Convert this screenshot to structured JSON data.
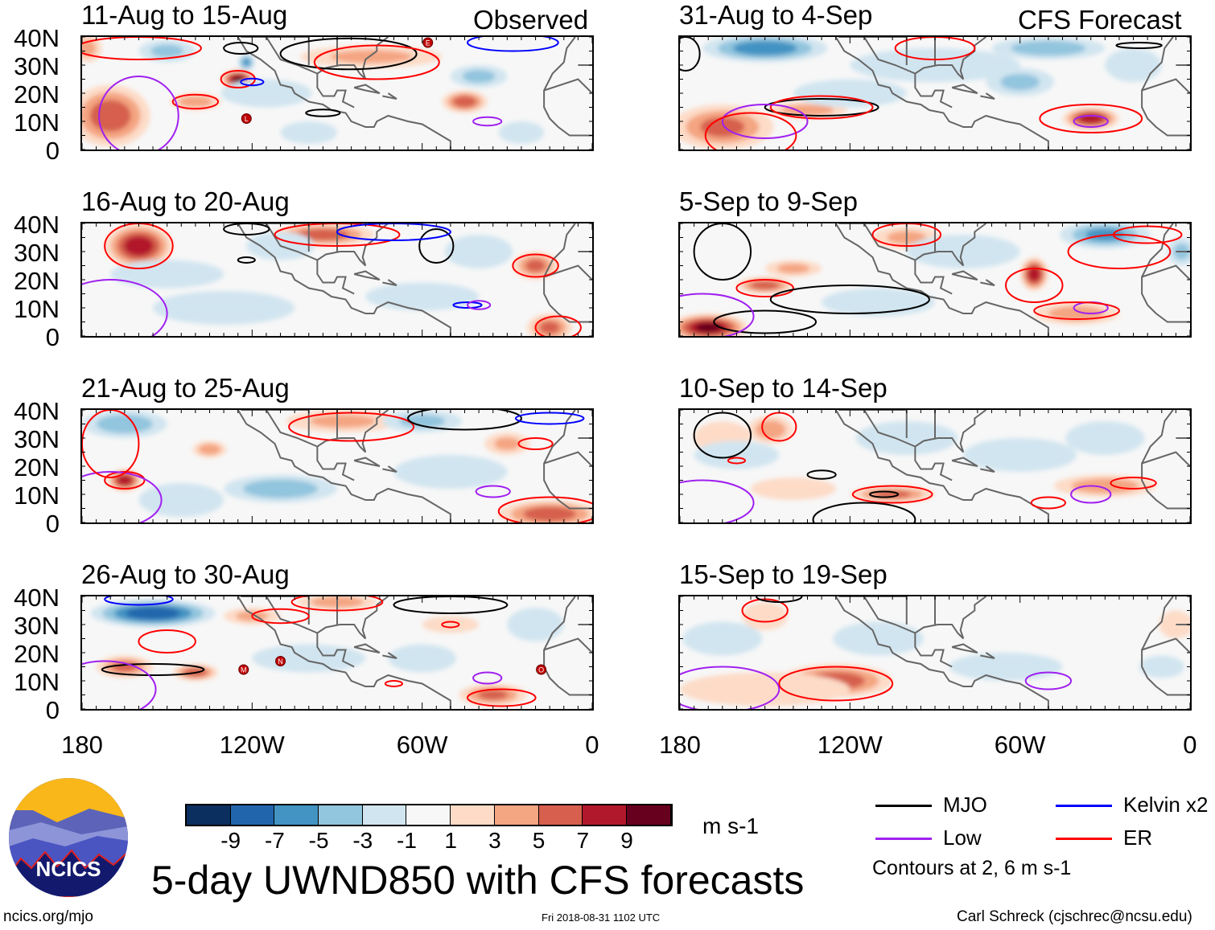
{
  "header": {
    "observed_label": "Observed",
    "forecast_label": "CFS Forecast"
  },
  "axes": {
    "lat_labels": [
      "40N",
      "30N",
      "20N",
      "10N",
      "0"
    ],
    "lon_labels": [
      "180",
      "120W",
      "60W",
      "0"
    ]
  },
  "panels": [
    {
      "title": "11-Aug to 15-Aug",
      "side": "observed",
      "blobs": [
        [
          -170,
          12,
          7,
          14,
          11
        ],
        [
          -125,
          25,
          10,
          6,
          3.5
        ],
        [
          -140,
          17,
          5,
          9,
          3
        ],
        [
          -45,
          17,
          7,
          8,
          4
        ],
        [
          -78,
          33,
          4,
          25,
          4
        ],
        [
          -178,
          36,
          4,
          5,
          5
        ],
        [
          -122,
          31,
          -6,
          3,
          3
        ],
        [
          -115,
          20,
          -3,
          16,
          5
        ],
        [
          -40,
          26,
          -4,
          10,
          4
        ],
        [
          -150,
          35,
          -4,
          10,
          4
        ],
        [
          -100,
          6,
          -3,
          10,
          4
        ],
        [
          -25,
          6,
          -3,
          8,
          4
        ]
      ],
      "contours": [
        [
          "er",
          -140,
          17,
          8,
          2.5
        ],
        [
          "er",
          -125,
          25,
          6,
          3
        ],
        [
          "kelvin",
          -120,
          24,
          4,
          1.2
        ],
        [
          "mjo",
          -95,
          13,
          6,
          1.2
        ],
        [
          "mjo",
          -124,
          36,
          6,
          2
        ],
        [
          "mjo",
          -86,
          34,
          24,
          5.5
        ],
        [
          "er",
          -76,
          31,
          22,
          6
        ],
        [
          "low",
          -37,
          10,
          5,
          1.5
        ],
        [
          "low",
          -160,
          12,
          14,
          14
        ],
        [
          "kelvin",
          -28,
          38,
          16,
          3
        ],
        [
          "er",
          -160,
          36,
          22,
          4
        ]
      ],
      "storms": [
        [
          "L",
          -122,
          11
        ],
        [
          "E",
          -58,
          38
        ]
      ]
    },
    {
      "title": "16-Aug to 20-Aug",
      "side": "observed",
      "blobs": [
        [
          -160,
          32,
          9,
          12,
          8
        ],
        [
          -95,
          36,
          7,
          18,
          4
        ],
        [
          -20,
          25,
          6,
          8,
          5
        ],
        [
          -15,
          3,
          6,
          8,
          5
        ],
        [
          -60,
          14,
          -3,
          20,
          5
        ],
        [
          -130,
          10,
          -3,
          25,
          6
        ],
        [
          -150,
          22,
          -2,
          20,
          5
        ],
        [
          -110,
          32,
          -3,
          12,
          5
        ],
        [
          -40,
          30,
          -3,
          12,
          6
        ]
      ],
      "contours": [
        [
          "er",
          -160,
          32,
          12,
          8
        ],
        [
          "er",
          -90,
          36,
          22,
          4
        ],
        [
          "mjo",
          -55,
          32,
          6,
          6
        ],
        [
          "mjo",
          -122,
          38,
          8,
          2
        ],
        [
          "mjo",
          -122,
          27,
          3,
          1
        ],
        [
          "kelvin",
          -70,
          37,
          20,
          3
        ],
        [
          "kelvin",
          -44,
          11,
          5,
          1
        ],
        [
          "low",
          -40,
          11,
          4,
          1.5
        ],
        [
          "low",
          -170,
          8,
          20,
          12
        ],
        [
          "er",
          -20,
          25,
          8,
          4
        ],
        [
          "er",
          -12,
          3,
          8,
          4
        ]
      ],
      "storms": []
    },
    {
      "title": "21-Aug to 25-Aug",
      "side": "observed",
      "blobs": [
        [
          -165,
          15,
          9,
          6,
          4
        ],
        [
          -135,
          26,
          5,
          6,
          3
        ],
        [
          -88,
          36,
          4,
          20,
          4
        ],
        [
          -30,
          28,
          4,
          8,
          4
        ],
        [
          -15,
          3,
          7,
          18,
          5
        ],
        [
          -165,
          35,
          -5,
          15,
          5
        ],
        [
          -110,
          12,
          -5,
          20,
          5
        ],
        [
          -60,
          36,
          -4,
          14,
          4
        ],
        [
          -50,
          18,
          -3,
          20,
          6
        ],
        [
          -145,
          8,
          -3,
          15,
          6
        ]
      ],
      "contours": [
        [
          "er",
          -165,
          15,
          7,
          3
        ],
        [
          "er",
          -85,
          34,
          22,
          5
        ],
        [
          "mjo",
          -45,
          37,
          20,
          4
        ],
        [
          "kelvin",
          -15,
          37,
          12,
          2
        ],
        [
          "er",
          -20,
          28,
          6,
          2
        ],
        [
          "low",
          -35,
          11,
          6,
          2
        ],
        [
          "er",
          -15,
          4,
          18,
          5
        ],
        [
          "low",
          -170,
          8,
          18,
          10
        ],
        [
          "er",
          -170,
          28,
          10,
          12
        ]
      ],
      "storms": []
    },
    {
      "title": "26-Aug to 30-Aug",
      "side": "observed",
      "blobs": [
        [
          -155,
          34,
          -9,
          22,
          5
        ],
        [
          -165,
          15,
          6,
          10,
          4
        ],
        [
          -140,
          13,
          7,
          8,
          3
        ],
        [
          -120,
          33,
          4,
          10,
          3
        ],
        [
          -35,
          5,
          6,
          12,
          4
        ],
        [
          -50,
          30,
          3,
          10,
          3
        ],
        [
          -90,
          38,
          5,
          14,
          3
        ],
        [
          -100,
          18,
          -3,
          20,
          5
        ],
        [
          -60,
          18,
          -3,
          12,
          5
        ],
        [
          -20,
          30,
          -3,
          10,
          6
        ]
      ],
      "contours": [
        [
          "kelvin",
          -160,
          39,
          12,
          2
        ],
        [
          "er",
          -150,
          24,
          10,
          4
        ],
        [
          "mjo",
          -155,
          14,
          18,
          2
        ],
        [
          "er",
          -110,
          33,
          10,
          2.5
        ],
        [
          "mjo",
          -50,
          37,
          20,
          3
        ],
        [
          "er",
          -90,
          38,
          16,
          3
        ],
        [
          "er",
          -50,
          30,
          3,
          1
        ],
        [
          "low",
          -37,
          11,
          5,
          2
        ],
        [
          "er",
          -32,
          4,
          12,
          3
        ],
        [
          "er",
          -70,
          9,
          3,
          1
        ],
        [
          "low",
          -172,
          7,
          18,
          10
        ]
      ],
      "storms": [
        [
          "M",
          -123,
          14
        ],
        [
          "N",
          -110,
          17
        ],
        [
          "O",
          -18,
          14
        ]
      ]
    },
    {
      "title": "31-Aug to 4-Sep",
      "side": "forecast",
      "blobs": [
        [
          -150,
          36,
          -7,
          22,
          5
        ],
        [
          -50,
          36,
          -5,
          20,
          4
        ],
        [
          -60,
          24,
          -4,
          12,
          5
        ],
        [
          -165,
          8,
          6,
          18,
          8
        ],
        [
          -35,
          11,
          9,
          10,
          4
        ],
        [
          -135,
          14,
          5,
          14,
          3
        ],
        [
          -90,
          30,
          -3,
          30,
          6
        ],
        [
          -120,
          20,
          -3,
          20,
          5
        ],
        [
          -20,
          30,
          -3,
          10,
          6
        ]
      ],
      "contours": [
        [
          "er",
          -35,
          11,
          18,
          5
        ],
        [
          "low",
          -35,
          10,
          6,
          2
        ],
        [
          "mjo",
          -130,
          15,
          20,
          3
        ],
        [
          "er",
          -130,
          15,
          18,
          4
        ],
        [
          "low",
          -150,
          10,
          15,
          6
        ],
        [
          "er",
          -155,
          5,
          16,
          8
        ],
        [
          "er",
          -90,
          36,
          14,
          4
        ],
        [
          "mjo",
          -178,
          34,
          5,
          6
        ],
        [
          "mjo",
          -18,
          37,
          8,
          1
        ]
      ],
      "storms": []
    },
    {
      "title": "5-Sep to 9-Sep",
      "side": "forecast",
      "blobs": [
        [
          -170,
          3,
          10,
          14,
          5
        ],
        [
          -150,
          18,
          7,
          10,
          3
        ],
        [
          -55,
          22,
          9,
          5,
          6
        ],
        [
          -40,
          8,
          5,
          15,
          4
        ],
        [
          -140,
          24,
          4,
          10,
          3
        ],
        [
          -100,
          35,
          4,
          12,
          4
        ],
        [
          -30,
          36,
          -6,
          16,
          5
        ],
        [
          -80,
          30,
          -3,
          20,
          6
        ],
        [
          -110,
          12,
          -3,
          20,
          5
        ],
        [
          -3,
          30,
          -4,
          5,
          5
        ]
      ],
      "contours": [
        [
          "er",
          -150,
          17,
          10,
          3
        ],
        [
          "mjo",
          -120,
          13,
          28,
          5
        ],
        [
          "mjo",
          -165,
          30,
          10,
          10
        ],
        [
          "er",
          -55,
          18,
          10,
          6
        ],
        [
          "low",
          -35,
          10,
          6,
          2
        ],
        [
          "er",
          -40,
          9,
          15,
          3
        ],
        [
          "er",
          -100,
          36,
          12,
          4
        ],
        [
          "er",
          -25,
          30,
          18,
          6
        ],
        [
          "er",
          -15,
          36,
          12,
          3
        ],
        [
          "mjo",
          -150,
          5,
          18,
          4
        ],
        [
          "low",
          -172,
          7,
          18,
          8
        ]
      ],
      "storms": []
    },
    {
      "title": "10-Sep to 14-Sep",
      "side": "forecast",
      "blobs": [
        [
          -148,
          33,
          5,
          8,
          5
        ],
        [
          -165,
          30,
          3,
          10,
          6
        ],
        [
          -105,
          10,
          6,
          15,
          3
        ],
        [
          -30,
          13,
          5,
          18,
          4
        ],
        [
          -140,
          12,
          3,
          15,
          4
        ],
        [
          -160,
          24,
          -3,
          15,
          5
        ],
        [
          -100,
          30,
          -3,
          18,
          6
        ],
        [
          -60,
          24,
          -3,
          20,
          6
        ],
        [
          -30,
          30,
          -2,
          14,
          6
        ]
      ],
      "contours": [
        [
          "mjo",
          -165,
          31,
          10,
          8
        ],
        [
          "er",
          -145,
          34,
          6,
          5
        ],
        [
          "er",
          -160,
          22,
          3,
          1
        ],
        [
          "mjo",
          -130,
          17,
          5,
          1.5
        ],
        [
          "er",
          -105,
          10,
          14,
          3
        ],
        [
          "mjo",
          -108,
          10,
          5,
          1
        ],
        [
          "mjo",
          -115,
          1,
          18,
          6
        ],
        [
          "low",
          -35,
          10,
          7,
          3
        ],
        [
          "er",
          -50,
          7,
          6,
          2
        ],
        [
          "er",
          -20,
          14,
          8,
          2
        ],
        [
          "low",
          -172,
          7,
          18,
          8
        ]
      ],
      "storms": []
    },
    {
      "title": "15-Sep to 19-Sep",
      "side": "forecast",
      "blobs": [
        [
          -125,
          10,
          7,
          20,
          6
        ],
        [
          -150,
          7,
          3,
          30,
          6
        ],
        [
          -150,
          33,
          3,
          8,
          5
        ],
        [
          -5,
          30,
          3,
          6,
          5
        ],
        [
          -65,
          15,
          -3,
          20,
          5
        ],
        [
          -110,
          25,
          -3,
          16,
          6
        ],
        [
          -165,
          25,
          -2,
          14,
          6
        ],
        [
          -10,
          15,
          -3,
          8,
          4
        ]
      ],
      "contours": [
        [
          "er",
          -125,
          9,
          20,
          6
        ],
        [
          "er",
          -150,
          35,
          8,
          4
        ],
        [
          "mjo",
          -145,
          40,
          8,
          2
        ],
        [
          "low",
          -50,
          10,
          8,
          3
        ],
        [
          "low",
          -165,
          7,
          20,
          8
        ]
      ],
      "storms": []
    }
  ],
  "colorbar": {
    "colors": [
      "#0b2f5e",
      "#2166ac",
      "#4393c3",
      "#92c5de",
      "#d1e5f0",
      "#f7f7f7",
      "#fddbc7",
      "#f4a582",
      "#d6604d",
      "#b2182b",
      "#67001f"
    ],
    "labels": [
      "-9",
      "-7",
      "-5",
      "-3",
      "-1",
      "1",
      "3",
      "5",
      "7",
      "9"
    ],
    "units": "m s-1"
  },
  "legend": {
    "items": [
      {
        "label": "MJO",
        "color": "#000000"
      },
      {
        "label": "Kelvin x2",
        "color": "#0000ff"
      },
      {
        "label": "Low",
        "color": "#a020f0"
      },
      {
        "label": "ER",
        "color": "#ff0000"
      }
    ],
    "note": "Contours at 2, 6 m s-1"
  },
  "footer": {
    "title": "5-day UWND850 with CFS forecasts",
    "website": "ncics.org/mjo",
    "timestamp": "Fri 2018-08-31 1102 UTC",
    "author": "Carl Schreck (cjschrec@ncsu.edu)",
    "logo_text": "NCICS"
  }
}
